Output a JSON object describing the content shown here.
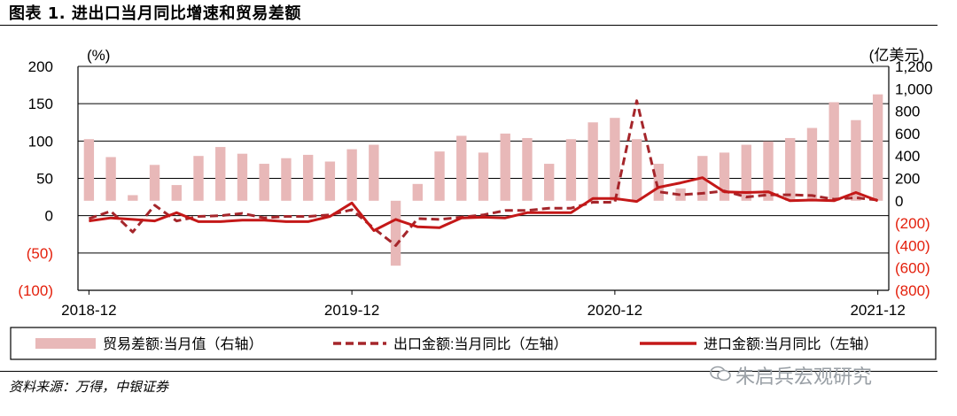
{
  "title": "图表 1. 进出口当月同比增速和贸易差额",
  "source": "资料来源：万得，中银证券",
  "watermark": "朱启兵宏观研究",
  "colors": {
    "bar": "#e8b8b8",
    "export_line": "#a5262b",
    "import_line": "#c41818",
    "axis_red": "#e4200c"
  },
  "chart_data": {
    "type": "bar",
    "left_axis_label": "(%)",
    "right_axis_label": "(亿美元)",
    "ylim_left": [
      -100,
      200
    ],
    "ylim_right": [
      -800,
      1200
    ],
    "left_ticks": [
      "200",
      "150",
      "100",
      "50",
      "0",
      "(50)",
      "(100)"
    ],
    "left_tick_values": [
      200,
      150,
      100,
      50,
      0,
      -50,
      -100
    ],
    "right_ticks": [
      "1,200",
      "1,000",
      "800",
      "600",
      "400",
      "200",
      "0",
      "(200)",
      "(400)",
      "(600)",
      "(800)"
    ],
    "right_tick_values": [
      1200,
      1000,
      800,
      600,
      400,
      200,
      0,
      -200,
      -400,
      -600,
      -800
    ],
    "x_tick_labels": [
      {
        "index": 0,
        "label": "2018-12"
      },
      {
        "index": 12,
        "label": "2019-12"
      },
      {
        "index": 24,
        "label": "2020-12"
      },
      {
        "index": 36,
        "label": "2021-12"
      }
    ],
    "series": [
      {
        "name": "贸易差额:当月值（右轴）",
        "kind": "bar",
        "axis": "right",
        "values": [
          550,
          390,
          50,
          320,
          140,
          400,
          480,
          420,
          330,
          380,
          410,
          350,
          460,
          500,
          -580,
          150,
          440,
          580,
          430,
          600,
          560,
          330,
          550,
          700,
          740,
          550,
          330,
          110,
          400,
          430,
          500,
          530,
          560,
          650,
          880,
          720,
          950
        ]
      },
      {
        "name": "出口金额:当月同比（左轴）",
        "kind": "line",
        "style": "dashed",
        "axis": "left",
        "values": [
          -4,
          6,
          -22,
          14,
          -7,
          -1,
          0,
          3,
          -3,
          -1,
          -1,
          1,
          8,
          -17,
          -40,
          -4,
          -5,
          -2,
          1,
          7,
          7,
          10,
          10,
          18,
          18,
          154,
          32,
          28,
          30,
          33,
          25,
          28,
          28,
          27,
          22,
          24,
          21
        ]
      },
      {
        "name": "进口金额:当月同比（左轴）",
        "kind": "line",
        "style": "solid",
        "axis": "left",
        "values": [
          -7,
          -3,
          -5,
          -7,
          4,
          -8,
          -8,
          -6,
          -6,
          -8,
          -8,
          -1,
          17,
          -20,
          -5,
          -15,
          -16,
          -3,
          -2,
          -3,
          4,
          4,
          4,
          23,
          23,
          19,
          38,
          44,
          51,
          32,
          31,
          32,
          20,
          21,
          20,
          31,
          20
        ]
      }
    ]
  }
}
